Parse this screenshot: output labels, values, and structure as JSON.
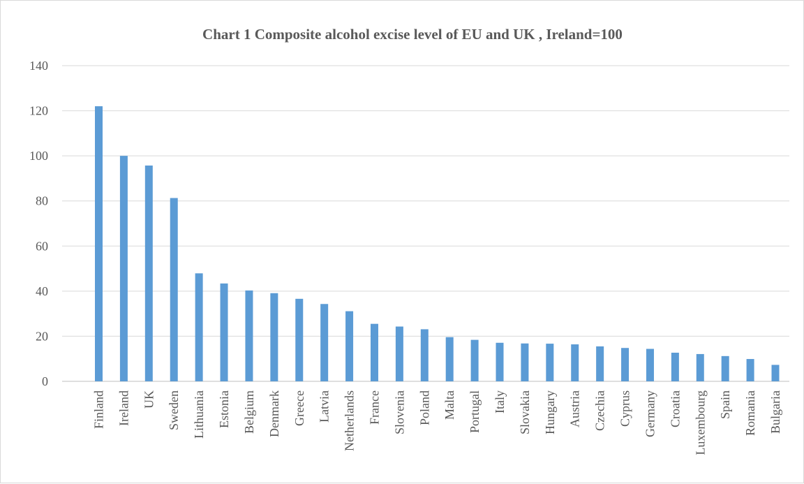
{
  "chart_data": {
    "type": "bar",
    "title": "Chart 1 Composite alcohol excise level of EU and UK , Ireland=100",
    "xlabel": "",
    "ylabel": "",
    "ylim": [
      0,
      140
    ],
    "yticks": [
      0,
      20,
      40,
      60,
      80,
      100,
      120,
      140
    ],
    "grid": true,
    "legend": "none",
    "bar_color": "#5b9bd5",
    "categories": [
      "Finland",
      "Ireland",
      "UK",
      "Sweden",
      "Lithuania",
      "Estonia",
      "Belgium",
      "Denmark",
      "Greece",
      "Latvia",
      "Netherlands",
      "France",
      "Slovenia",
      "Poland",
      "Malta",
      "Portugal",
      "Italy",
      "Slovakia",
      "Hungary",
      "Austria",
      "Czechia",
      "Cyprus",
      "Germany",
      "Croatia",
      "Luxembourg",
      "Spain",
      "Romania",
      "Bulgaria"
    ],
    "values": [
      122,
      100,
      95.7,
      81.3,
      47.9,
      43.4,
      40.3,
      39.1,
      36.6,
      34.3,
      31.1,
      25.5,
      24.3,
      23.1,
      19.6,
      18.4,
      17.1,
      16.8,
      16.7,
      16.4,
      15.5,
      14.8,
      14.4,
      12.7,
      12.1,
      11.2,
      9.9,
      7.3
    ]
  }
}
